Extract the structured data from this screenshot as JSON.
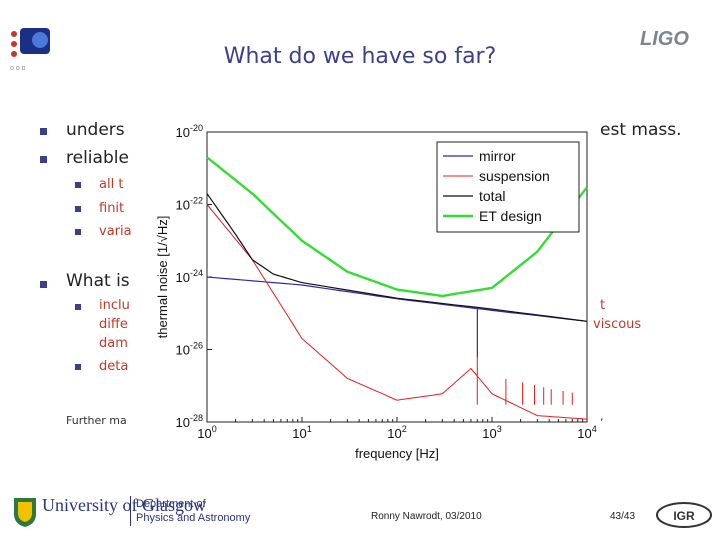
{
  "slide": {
    "title": "What do we have so far?",
    "bullets_left": [
      {
        "text": "unders"
      },
      {
        "text": "reliable"
      }
    ],
    "bullet_right_text": "est mass.",
    "sub_bullets_1": [
      "all t",
      "finit",
      "varia"
    ],
    "bullet_what": "What is",
    "sub_bullets_2": [
      "inclu",
      "diffe",
      "dam",
      "deta"
    ],
    "sub_right_1": "t",
    "sub_right_2": "viscous",
    "further": "Further ma",
    "further_tail": ","
  },
  "footer": {
    "author_date": "Ronny Nawrodt, 03/2010",
    "page": "43/43",
    "university": "University of Glasgow",
    "dept_line1": "Department of",
    "dept_line2": "Physics and Astronomy",
    "ligo": "LIGO",
    "igr": "IGR"
  },
  "chart_data": {
    "type": "line",
    "xlabel": "frequency [Hz]",
    "ylabel": "thermal noise [1/√Hz]",
    "x_scale": "log",
    "y_scale": "log",
    "xlim": [
      1,
      10000
    ],
    "ylim": [
      1e-28,
      1e-20
    ],
    "x_ticks": [
      "10^0",
      "10^1",
      "10^2",
      "10^3",
      "10^4"
    ],
    "y_ticks": [
      "10^-20",
      "10^-22",
      "10^-24",
      "10^-26",
      "10^-28"
    ],
    "legend": [
      "mirror",
      "suspension",
      "total",
      "ET design"
    ],
    "colors": {
      "mirror": "#2b2bb0",
      "suspension": "#e02020",
      "total": "#111111",
      "et": "#33dd33"
    },
    "series": [
      {
        "name": "mirror",
        "x": [
          1,
          10,
          100,
          1000,
          10000
        ],
        "y": [
          1e-24,
          6e-25,
          2.5e-25,
          1.2e-25,
          6e-26
        ]
      },
      {
        "name": "suspension",
        "x": [
          1,
          3,
          10,
          30,
          100,
          300,
          600,
          1000,
          3000,
          10000
        ],
        "y": [
          1e-22,
          3e-24,
          2e-26,
          1.6e-27,
          4e-28,
          6e-28,
          3e-27,
          6e-28,
          1.5e-28,
          1.2e-28
        ]
      },
      {
        "name": "total",
        "x": [
          1,
          2,
          3,
          5,
          10,
          100,
          1000,
          10000
        ],
        "y": [
          2e-22,
          1.5e-23,
          3e-24,
          1.2e-24,
          7e-25,
          2.6e-25,
          1.3e-25,
          6e-26
        ]
      },
      {
        "name": "ET design",
        "x": [
          1,
          3,
          10,
          30,
          100,
          300,
          1000,
          3000,
          10000
        ],
        "y": [
          2e-21,
          2e-22,
          1e-23,
          1.4e-24,
          4.5e-25,
          3e-25,
          5e-25,
          5e-24,
          3e-22
        ]
      }
    ]
  }
}
